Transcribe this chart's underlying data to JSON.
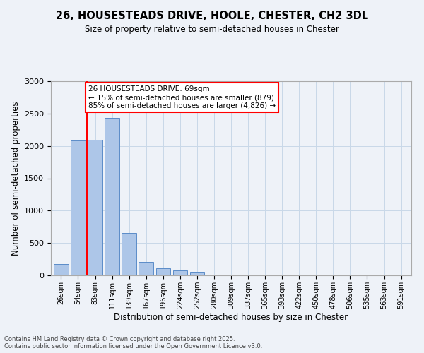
{
  "title_line1": "26, HOUSESTEADS DRIVE, HOOLE, CHESTER, CH2 3DL",
  "title_line2": "Size of property relative to semi-detached houses in Chester",
  "xlabel": "Distribution of semi-detached houses by size in Chester",
  "ylabel": "Number of semi-detached properties",
  "categories": [
    "26sqm",
    "54sqm",
    "83sqm",
    "111sqm",
    "139sqm",
    "167sqm",
    "196sqm",
    "224sqm",
    "252sqm",
    "280sqm",
    "309sqm",
    "337sqm",
    "365sqm",
    "393sqm",
    "422sqm",
    "450sqm",
    "478sqm",
    "506sqm",
    "535sqm",
    "563sqm",
    "591sqm"
  ],
  "bar_heights": [
    170,
    2080,
    2090,
    2430,
    650,
    210,
    110,
    80,
    55,
    0,
    0,
    0,
    0,
    0,
    0,
    0,
    0,
    0,
    0,
    0,
    0
  ],
  "bar_color": "#adc6e8",
  "bar_edge_color": "#5b8cc8",
  "grid_color": "#c8d8e8",
  "background_color": "#eef2f8",
  "vline_color": "red",
  "annotation_title": "26 HOUSESTEADS DRIVE: 69sqm",
  "annotation_line2": "← 15% of semi-detached houses are smaller (879)",
  "annotation_line3": "85% of semi-detached houses are larger (4,826) →",
  "annotation_box_color": "white",
  "annotation_box_edge": "red",
  "ylim": [
    0,
    3000
  ],
  "yticks": [
    0,
    500,
    1000,
    1500,
    2000,
    2500,
    3000
  ],
  "footer_line1": "Contains HM Land Registry data © Crown copyright and database right 2025.",
  "footer_line2": "Contains public sector information licensed under the Open Government Licence v3.0."
}
